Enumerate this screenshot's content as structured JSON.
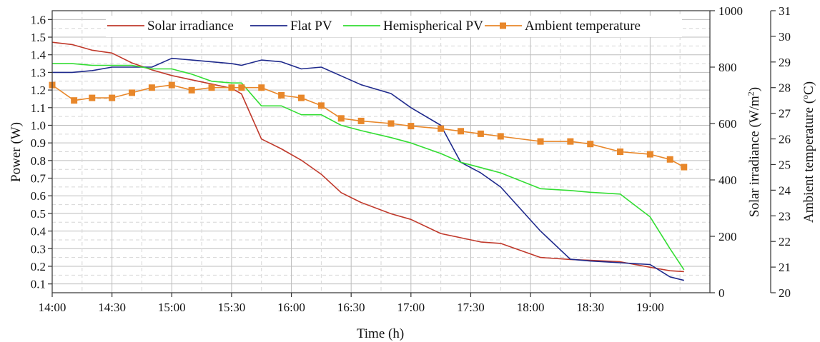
{
  "chart_data": {
    "type": "line",
    "xlabel": "Time (h)",
    "ylabel_left": "Power (W)",
    "ylabel_right1_main": "Solar irradiance (W/m",
    "ylabel_right1_sup": "2",
    "ylabel_right1_end": ")",
    "ylabel_right2_main": "Ambient temperature (",
    "ylabel_right2_sup": "o",
    "ylabel_right2_end": "C)",
    "x_ticks": [
      "14:00",
      "14:30",
      "15:00",
      "15:30",
      "16:00",
      "16:30",
      "17:00",
      "17:30",
      "18:00",
      "18:30",
      "19:00"
    ],
    "x_range_minutes_after_14": [
      0,
      330
    ],
    "y_left": {
      "range": [
        0.05,
        1.65
      ],
      "ticks": [
        "0.1",
        "0.2",
        "0.3",
        "0.4",
        "0.5",
        "0.6",
        "0.7",
        "0.8",
        "0.9",
        "1.0",
        "1.1",
        "1.2",
        "1.3",
        "1.4",
        "1.5",
        "1.6"
      ]
    },
    "y_right1": {
      "range": [
        0,
        1000
      ],
      "ticks": [
        "0",
        "200",
        "400",
        "600",
        "800",
        "1000"
      ]
    },
    "y_right2": {
      "range": [
        20,
        31
      ],
      "ticks": [
        "20",
        "21",
        "22",
        "23",
        "24",
        "25",
        "26",
        "27",
        "28",
        "29",
        "30",
        "31"
      ]
    },
    "grid": true,
    "legend_position": "top",
    "series": [
      {
        "name": "Solar irradiance",
        "axis": "right1",
        "color": "#c0392b",
        "marker": "none",
        "x": [
          0,
          10,
          20,
          30,
          40,
          50,
          60,
          70,
          80,
          90,
          95,
          105,
          115,
          125,
          135,
          145,
          155,
          170,
          180,
          195,
          205,
          215,
          225,
          245,
          260,
          270,
          285,
          300,
          310,
          317
        ],
        "y": [
          888,
          880,
          860,
          850,
          815,
          790,
          770,
          755,
          740,
          725,
          705,
          545,
          510,
          470,
          420,
          355,
          320,
          280,
          260,
          210,
          195,
          180,
          175,
          125,
          118,
          115,
          110,
          90,
          78,
          75
        ]
      },
      {
        "name": "Flat PV",
        "axis": "left",
        "color": "#1f2a8c",
        "marker": "none",
        "x": [
          0,
          10,
          20,
          30,
          40,
          50,
          60,
          70,
          80,
          90,
          95,
          105,
          115,
          125,
          135,
          145,
          155,
          170,
          180,
          195,
          205,
          215,
          225,
          245,
          260,
          270,
          285,
          300,
          310,
          317
        ],
        "y": [
          1.3,
          1.3,
          1.31,
          1.33,
          1.33,
          1.33,
          1.38,
          1.37,
          1.36,
          1.35,
          1.34,
          1.37,
          1.36,
          1.32,
          1.33,
          1.28,
          1.23,
          1.18,
          1.1,
          1.0,
          0.79,
          0.73,
          0.65,
          0.4,
          0.24,
          0.23,
          0.22,
          0.21,
          0.14,
          0.12
        ]
      },
      {
        "name": "Hemispherical PV",
        "axis": "left",
        "color": "#33dd33",
        "marker": "none",
        "x": [
          0,
          10,
          20,
          30,
          40,
          50,
          60,
          70,
          80,
          90,
          95,
          105,
          115,
          125,
          135,
          145,
          155,
          170,
          180,
          195,
          205,
          215,
          225,
          245,
          260,
          270,
          285,
          300,
          310,
          317
        ],
        "y": [
          1.35,
          1.35,
          1.34,
          1.34,
          1.34,
          1.32,
          1.32,
          1.29,
          1.25,
          1.24,
          1.24,
          1.11,
          1.11,
          1.06,
          1.06,
          1.0,
          0.97,
          0.93,
          0.9,
          0.84,
          0.79,
          0.76,
          0.73,
          0.64,
          0.63,
          0.62,
          0.61,
          0.48,
          0.3,
          0.18
        ]
      },
      {
        "name": "Ambient temperature",
        "axis": "right2",
        "color": "#e8872a",
        "marker": "square",
        "x": [
          0,
          11,
          20,
          30,
          40,
          50,
          60,
          70,
          80,
          90,
          95,
          105,
          115,
          125,
          135,
          145,
          155,
          170,
          180,
          195,
          205,
          215,
          225,
          245,
          260,
          270,
          285,
          300,
          310,
          317
        ],
        "y": [
          28.1,
          27.5,
          27.6,
          27.6,
          27.8,
          28.0,
          28.1,
          27.9,
          28.0,
          28.0,
          28.0,
          28.0,
          27.7,
          27.6,
          27.3,
          26.8,
          26.7,
          26.6,
          26.5,
          26.4,
          26.3,
          26.2,
          26.1,
          25.9,
          25.9,
          25.8,
          25.5,
          25.4,
          25.2,
          24.9
        ]
      }
    ]
  }
}
